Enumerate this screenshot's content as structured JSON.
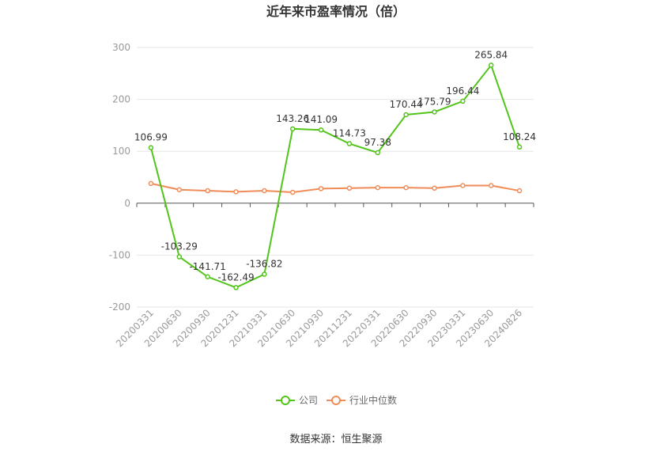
{
  "chart_data": {
    "type": "line",
    "title": "近年来市盈率情况（倍）",
    "categories": [
      "20200331",
      "20200630",
      "20200930",
      "20201231",
      "20210331",
      "20210630",
      "20210930",
      "20211231",
      "20220331",
      "20220630",
      "20220930",
      "20230331",
      "20230630",
      "20240826"
    ],
    "series": [
      {
        "name": "公司",
        "color": "#52c41a",
        "values": [
          106.99,
          -103.29,
          -141.71,
          -162.49,
          -136.82,
          143.26,
          141.09,
          114.73,
          97.38,
          170.44,
          175.79,
          196.44,
          265.84,
          108.24
        ],
        "labels": [
          "106.99",
          "-103.29",
          "-141.71",
          "-162.49",
          "-136.82",
          "143.26",
          "141.09",
          "114.73",
          "97.38",
          "170.44",
          "175.79",
          "196.44",
          "265.84",
          "108.24"
        ]
      },
      {
        "name": "行业中位数",
        "color": "#f08c5a",
        "values": [
          38,
          26,
          24,
          22,
          24,
          21,
          28,
          29,
          30,
          30,
          29,
          34,
          34,
          24
        ]
      }
    ],
    "yticks": [
      -200,
      -100,
      0,
      100,
      200,
      300
    ],
    "ylim": [
      -200,
      300
    ],
    "grid": true,
    "legend_position": "bottom-center"
  },
  "source": "数据来源：恒生聚源"
}
